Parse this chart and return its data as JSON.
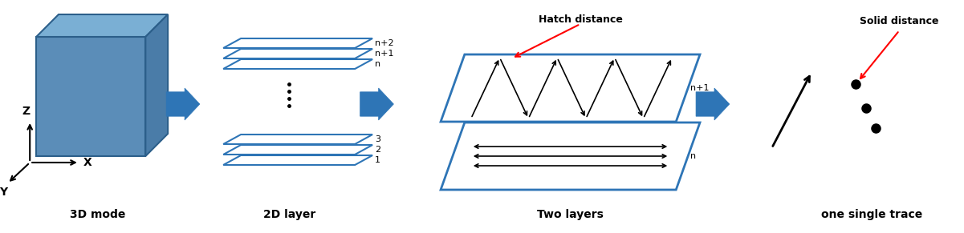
{
  "bg_color": "#ffffff",
  "cube_color": "#5b8db8",
  "cube_top_color": "#7aafd4",
  "cube_right_color": "#4a7ca8",
  "cube_edge_color": "#2c5f8a",
  "arrow_blue": "#2e75b6",
  "layer_edge": "#2e75b6",
  "red_color": "#ff0000",
  "title_3d": "3D mode",
  "title_2d": "2D layer",
  "title_two": "Two layers",
  "title_one": "one single trace",
  "label_hatch": "Hatch distance",
  "label_solid": "Solid distance",
  "label_n2": "n+2",
  "label_n1": "n+1",
  "label_n": "n",
  "label_np1": "n+1",
  "label_nn": "n",
  "label_3": "3",
  "label_2": "2",
  "label_1": "1",
  "axis_x": "X",
  "axis_y": "Y",
  "axis_z": "Z"
}
